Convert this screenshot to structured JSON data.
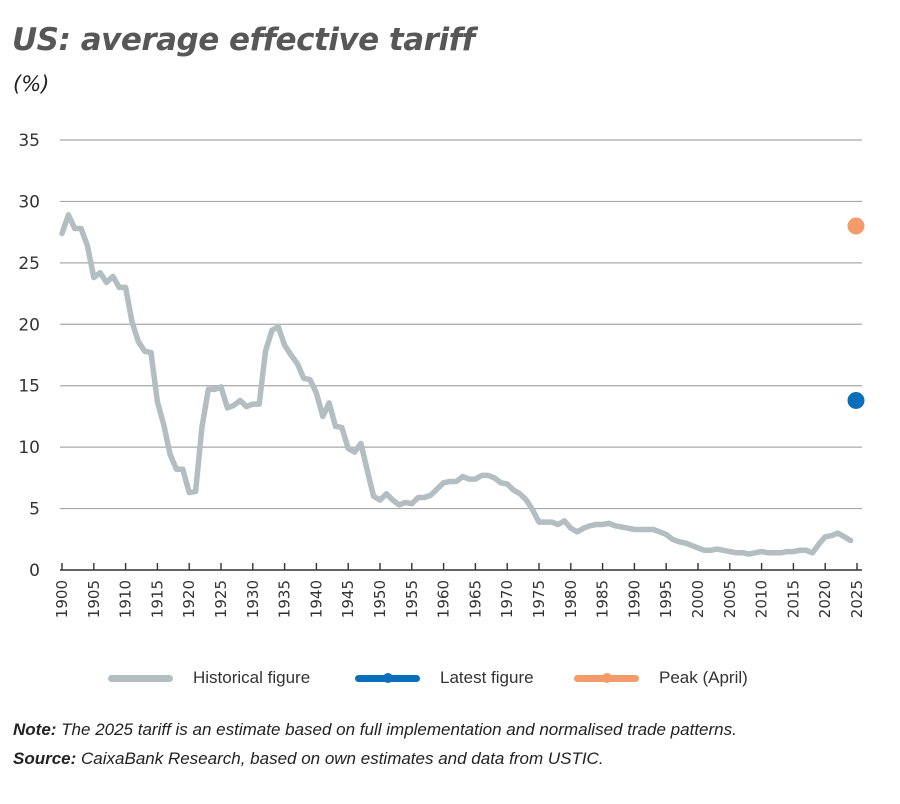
{
  "header": {
    "title": "US: average effective tariff",
    "unit": "(%)"
  },
  "legend": [
    {
      "label": "Historical figure",
      "color": "#b2bec1"
    },
    {
      "label": "Latest figure",
      "color": "#0a6fba"
    },
    {
      "label": "Peak (April)",
      "color": "#f49b6c"
    }
  ],
  "footer": {
    "note_label": "Note:",
    "note_text": " The 2025 tariff is an estimate based on full implementation and normalised trade patterns.",
    "source_label": "Source:",
    "source_text": " CaixaBank Research, based on own estimates and data from USTIC."
  },
  "chart_data": {
    "type": "line",
    "title": "US: average effective tariff",
    "subtitle": "(%)",
    "xlabel": "",
    "ylabel": "%",
    "ylim": [
      0,
      35
    ],
    "yticks": [
      0,
      5,
      10,
      15,
      20,
      25,
      30,
      35
    ],
    "xlim": [
      1900,
      2025
    ],
    "xticks": [
      1900,
      1905,
      1910,
      1915,
      1920,
      1925,
      1930,
      1935,
      1940,
      1945,
      1950,
      1955,
      1960,
      1965,
      1970,
      1975,
      1980,
      1985,
      1990,
      1995,
      2000,
      2005,
      2010,
      2015,
      2020,
      2025
    ],
    "grid": "horizontal",
    "legend_position": "bottom",
    "series": [
      {
        "name": "Historical figure",
        "type": "line",
        "color": "#b2bec1",
        "x": [
          1900,
          1901,
          1902,
          1903,
          1904,
          1905,
          1906,
          1907,
          1908,
          1909,
          1910,
          1911,
          1912,
          1913,
          1914,
          1915,
          1916,
          1917,
          1918,
          1919,
          1920,
          1921,
          1922,
          1923,
          1924,
          1925,
          1926,
          1927,
          1928,
          1929,
          1930,
          1931,
          1932,
          1933,
          1934,
          1935,
          1936,
          1937,
          1938,
          1939,
          1940,
          1941,
          1942,
          1943,
          1944,
          1945,
          1946,
          1947,
          1948,
          1949,
          1950,
          1951,
          1952,
          1953,
          1954,
          1955,
          1956,
          1957,
          1958,
          1959,
          1960,
          1961,
          1962,
          1963,
          1964,
          1965,
          1966,
          1967,
          1968,
          1969,
          1970,
          1971,
          1972,
          1973,
          1974,
          1975,
          1976,
          1977,
          1978,
          1979,
          1980,
          1981,
          1982,
          1983,
          1984,
          1985,
          1986,
          1987,
          1988,
          1989,
          1990,
          1991,
          1992,
          1993,
          1994,
          1995,
          1996,
          1997,
          1998,
          1999,
          2000,
          2001,
          2002,
          2003,
          2004,
          2005,
          2006,
          2007,
          2008,
          2009,
          2010,
          2011,
          2012,
          2013,
          2014,
          2015,
          2016,
          2017,
          2018,
          2019,
          2020,
          2021,
          2022,
          2023,
          2024
        ],
        "values": [
          27.4,
          28.9,
          27.8,
          27.8,
          26.4,
          23.8,
          24.2,
          23.4,
          23.9,
          23.0,
          23.0,
          20.2,
          18.6,
          17.8,
          17.7,
          13.7,
          11.8,
          9.4,
          8.2,
          8.2,
          6.3,
          6.4,
          11.6,
          14.7,
          14.7,
          14.9,
          13.2,
          13.4,
          13.8,
          13.3,
          13.5,
          13.5,
          17.8,
          19.5,
          19.8,
          18.3,
          17.5,
          16.8,
          15.6,
          15.5,
          14.4,
          12.5,
          13.6,
          11.7,
          11.6,
          9.9,
          9.6,
          10.3,
          8.1,
          6.0,
          5.7,
          6.2,
          5.7,
          5.3,
          5.5,
          5.4,
          5.9,
          5.9,
          6.1,
          6.6,
          7.1,
          7.2,
          7.2,
          7.6,
          7.4,
          7.4,
          7.7,
          7.7,
          7.5,
          7.1,
          7.0,
          6.5,
          6.2,
          5.7,
          4.9,
          3.9,
          3.9,
          3.9,
          3.7,
          4.0,
          3.4,
          3.1,
          3.4,
          3.6,
          3.7,
          3.7,
          3.8,
          3.6,
          3.5,
          3.4,
          3.3,
          3.3,
          3.3,
          3.3,
          3.1,
          2.9,
          2.5,
          2.3,
          2.2,
          2.0,
          1.8,
          1.6,
          1.6,
          1.7,
          1.6,
          1.5,
          1.4,
          1.4,
          1.3,
          1.4,
          1.5,
          1.4,
          1.4,
          1.4,
          1.5,
          1.5,
          1.6,
          1.6,
          1.4,
          2.1,
          2.7,
          2.8,
          3.0,
          2.7,
          2.4
        ]
      },
      {
        "name": "Latest figure",
        "type": "scatter",
        "color": "#0a6fba",
        "x": [
          2025
        ],
        "values": [
          13.8
        ]
      },
      {
        "name": "Peak (April)",
        "type": "scatter",
        "color": "#f49b6c",
        "x": [
          2025
        ],
        "values": [
          28.0
        ]
      }
    ]
  }
}
